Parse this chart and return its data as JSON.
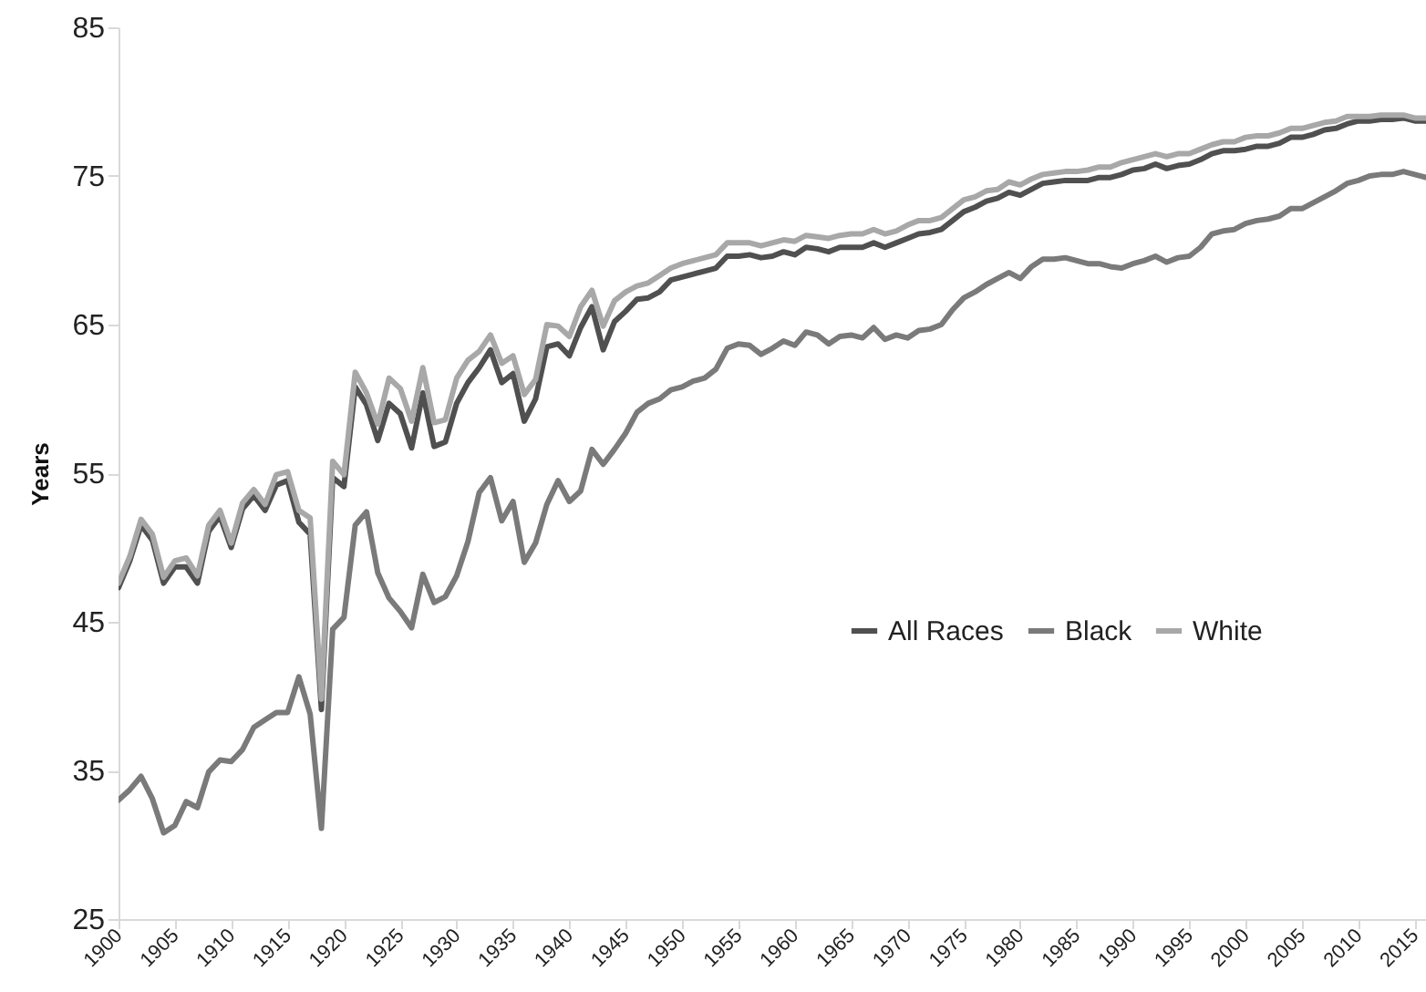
{
  "chart_data": {
    "type": "line",
    "ylabel": "Years",
    "x": [
      1900,
      1901,
      1902,
      1903,
      1904,
      1905,
      1906,
      1907,
      1908,
      1909,
      1910,
      1911,
      1912,
      1913,
      1914,
      1915,
      1916,
      1917,
      1918,
      1919,
      1920,
      1921,
      1922,
      1923,
      1924,
      1925,
      1926,
      1927,
      1928,
      1929,
      1930,
      1931,
      1932,
      1933,
      1934,
      1935,
      1936,
      1937,
      1938,
      1939,
      1940,
      1941,
      1942,
      1943,
      1944,
      1945,
      1946,
      1947,
      1948,
      1949,
      1950,
      1951,
      1952,
      1953,
      1954,
      1955,
      1956,
      1957,
      1958,
      1959,
      1960,
      1961,
      1962,
      1963,
      1964,
      1965,
      1966,
      1967,
      1968,
      1969,
      1970,
      1971,
      1972,
      1973,
      1974,
      1975,
      1976,
      1977,
      1978,
      1979,
      1980,
      1981,
      1982,
      1983,
      1984,
      1985,
      1986,
      1987,
      1988,
      1989,
      1990,
      1991,
      1992,
      1993,
      1994,
      1995,
      1996,
      1997,
      1998,
      1999,
      2000,
      2001,
      2002,
      2003,
      2004,
      2005,
      2006,
      2007,
      2008,
      2009,
      2010,
      2011,
      2012,
      2013,
      2014,
      2015,
      2016
    ],
    "series": [
      {
        "name": "All Races",
        "color": "#505050",
        "values": [
          47.3,
          49.1,
          51.5,
          50.5,
          47.6,
          48.7,
          48.7,
          47.6,
          51.1,
          52.1,
          50.0,
          52.6,
          53.5,
          52.5,
          54.2,
          54.5,
          51.7,
          50.9,
          39.1,
          54.7,
          54.1,
          60.8,
          59.6,
          57.2,
          59.7,
          59.0,
          56.7,
          60.4,
          56.8,
          57.1,
          59.7,
          61.1,
          62.1,
          63.3,
          61.1,
          61.7,
          58.5,
          60.0,
          63.5,
          63.7,
          62.9,
          64.8,
          66.2,
          63.3,
          65.2,
          65.9,
          66.7,
          66.8,
          67.2,
          68.0,
          68.2,
          68.4,
          68.6,
          68.8,
          69.6,
          69.6,
          69.7,
          69.5,
          69.6,
          69.9,
          69.7,
          70.2,
          70.1,
          69.9,
          70.2,
          70.2,
          70.2,
          70.5,
          70.2,
          70.5,
          70.8,
          71.1,
          71.2,
          71.4,
          72.0,
          72.6,
          72.9,
          73.3,
          73.5,
          73.9,
          73.7,
          74.1,
          74.5,
          74.6,
          74.7,
          74.7,
          74.7,
          74.9,
          74.9,
          75.1,
          75.4,
          75.5,
          75.8,
          75.5,
          75.7,
          75.8,
          76.1,
          76.5,
          76.7,
          76.7,
          76.8,
          77.0,
          77.0,
          77.2,
          77.6,
          77.6,
          77.8,
          78.1,
          78.2,
          78.5,
          78.7,
          78.7,
          78.8,
          78.8,
          78.9,
          78.7,
          78.7
        ]
      },
      {
        "name": "Black",
        "color": "#7a7a7a",
        "values": [
          33.0,
          33.7,
          34.6,
          33.1,
          30.8,
          31.3,
          32.9,
          32.5,
          34.9,
          35.7,
          35.6,
          36.4,
          37.9,
          38.4,
          38.9,
          38.9,
          41.3,
          38.8,
          31.1,
          44.5,
          45.3,
          51.5,
          52.4,
          48.3,
          46.6,
          45.7,
          44.6,
          48.2,
          46.3,
          46.7,
          48.1,
          50.4,
          53.7,
          54.7,
          51.8,
          53.1,
          49.0,
          50.3,
          52.9,
          54.5,
          53.1,
          53.8,
          56.6,
          55.6,
          56.6,
          57.7,
          59.1,
          59.7,
          60.0,
          60.6,
          60.8,
          61.2,
          61.4,
          62.0,
          63.4,
          63.7,
          63.6,
          63.0,
          63.4,
          63.9,
          63.6,
          64.5,
          64.3,
          63.7,
          64.2,
          64.3,
          64.1,
          64.8,
          64.0,
          64.3,
          64.1,
          64.6,
          64.7,
          65.0,
          66.0,
          66.8,
          67.2,
          67.7,
          68.1,
          68.5,
          68.1,
          68.9,
          69.4,
          69.4,
          69.5,
          69.3,
          69.1,
          69.1,
          68.9,
          68.8,
          69.1,
          69.3,
          69.6,
          69.2,
          69.5,
          69.6,
          70.2,
          71.1,
          71.3,
          71.4,
          71.8,
          72.0,
          72.1,
          72.3,
          72.8,
          72.8,
          73.2,
          73.6,
          74.0,
          74.5,
          74.7,
          75.0,
          75.1,
          75.1,
          75.3,
          75.1,
          74.9
        ]
      },
      {
        "name": "White",
        "color": "#a8a8a8",
        "values": [
          47.6,
          49.4,
          51.9,
          50.9,
          48.0,
          49.1,
          49.3,
          48.1,
          51.5,
          52.5,
          50.3,
          53.0,
          53.9,
          52.9,
          54.9,
          55.1,
          52.5,
          52.0,
          39.8,
          55.8,
          54.9,
          61.8,
          60.4,
          58.3,
          61.4,
          60.7,
          58.5,
          62.1,
          58.4,
          58.6,
          61.4,
          62.6,
          63.2,
          64.3,
          62.4,
          62.9,
          60.3,
          61.3,
          65.0,
          64.9,
          64.2,
          66.2,
          67.3,
          64.9,
          66.6,
          67.2,
          67.6,
          67.8,
          68.3,
          68.8,
          69.1,
          69.3,
          69.5,
          69.7,
          70.5,
          70.5,
          70.5,
          70.3,
          70.5,
          70.7,
          70.6,
          71.0,
          70.9,
          70.8,
          71.0,
          71.1,
          71.1,
          71.4,
          71.1,
          71.3,
          71.7,
          72.0,
          72.0,
          72.2,
          72.8,
          73.4,
          73.6,
          74.0,
          74.1,
          74.6,
          74.4,
          74.8,
          75.1,
          75.2,
          75.3,
          75.3,
          75.4,
          75.6,
          75.6,
          75.9,
          76.1,
          76.3,
          76.5,
          76.3,
          76.5,
          76.5,
          76.8,
          77.1,
          77.3,
          77.3,
          77.6,
          77.7,
          77.7,
          77.9,
          78.2,
          78.2,
          78.4,
          78.6,
          78.7,
          79.0,
          79.0,
          79.0,
          79.1,
          79.1,
          79.1,
          78.9,
          78.9
        ]
      }
    ],
    "xlim": [
      1900,
      2016
    ],
    "xticks": [
      1900,
      1905,
      1910,
      1915,
      1920,
      1925,
      1930,
      1935,
      1940,
      1945,
      1950,
      1955,
      1960,
      1965,
      1970,
      1975,
      1980,
      1985,
      1990,
      1995,
      2000,
      2005,
      2010,
      2015
    ],
    "ylim": [
      25,
      85
    ],
    "yticks": [
      25,
      35,
      45,
      55,
      65,
      75,
      85
    ],
    "legend": "right",
    "grid": false,
    "marker": "none",
    "line_style": "solid"
  }
}
